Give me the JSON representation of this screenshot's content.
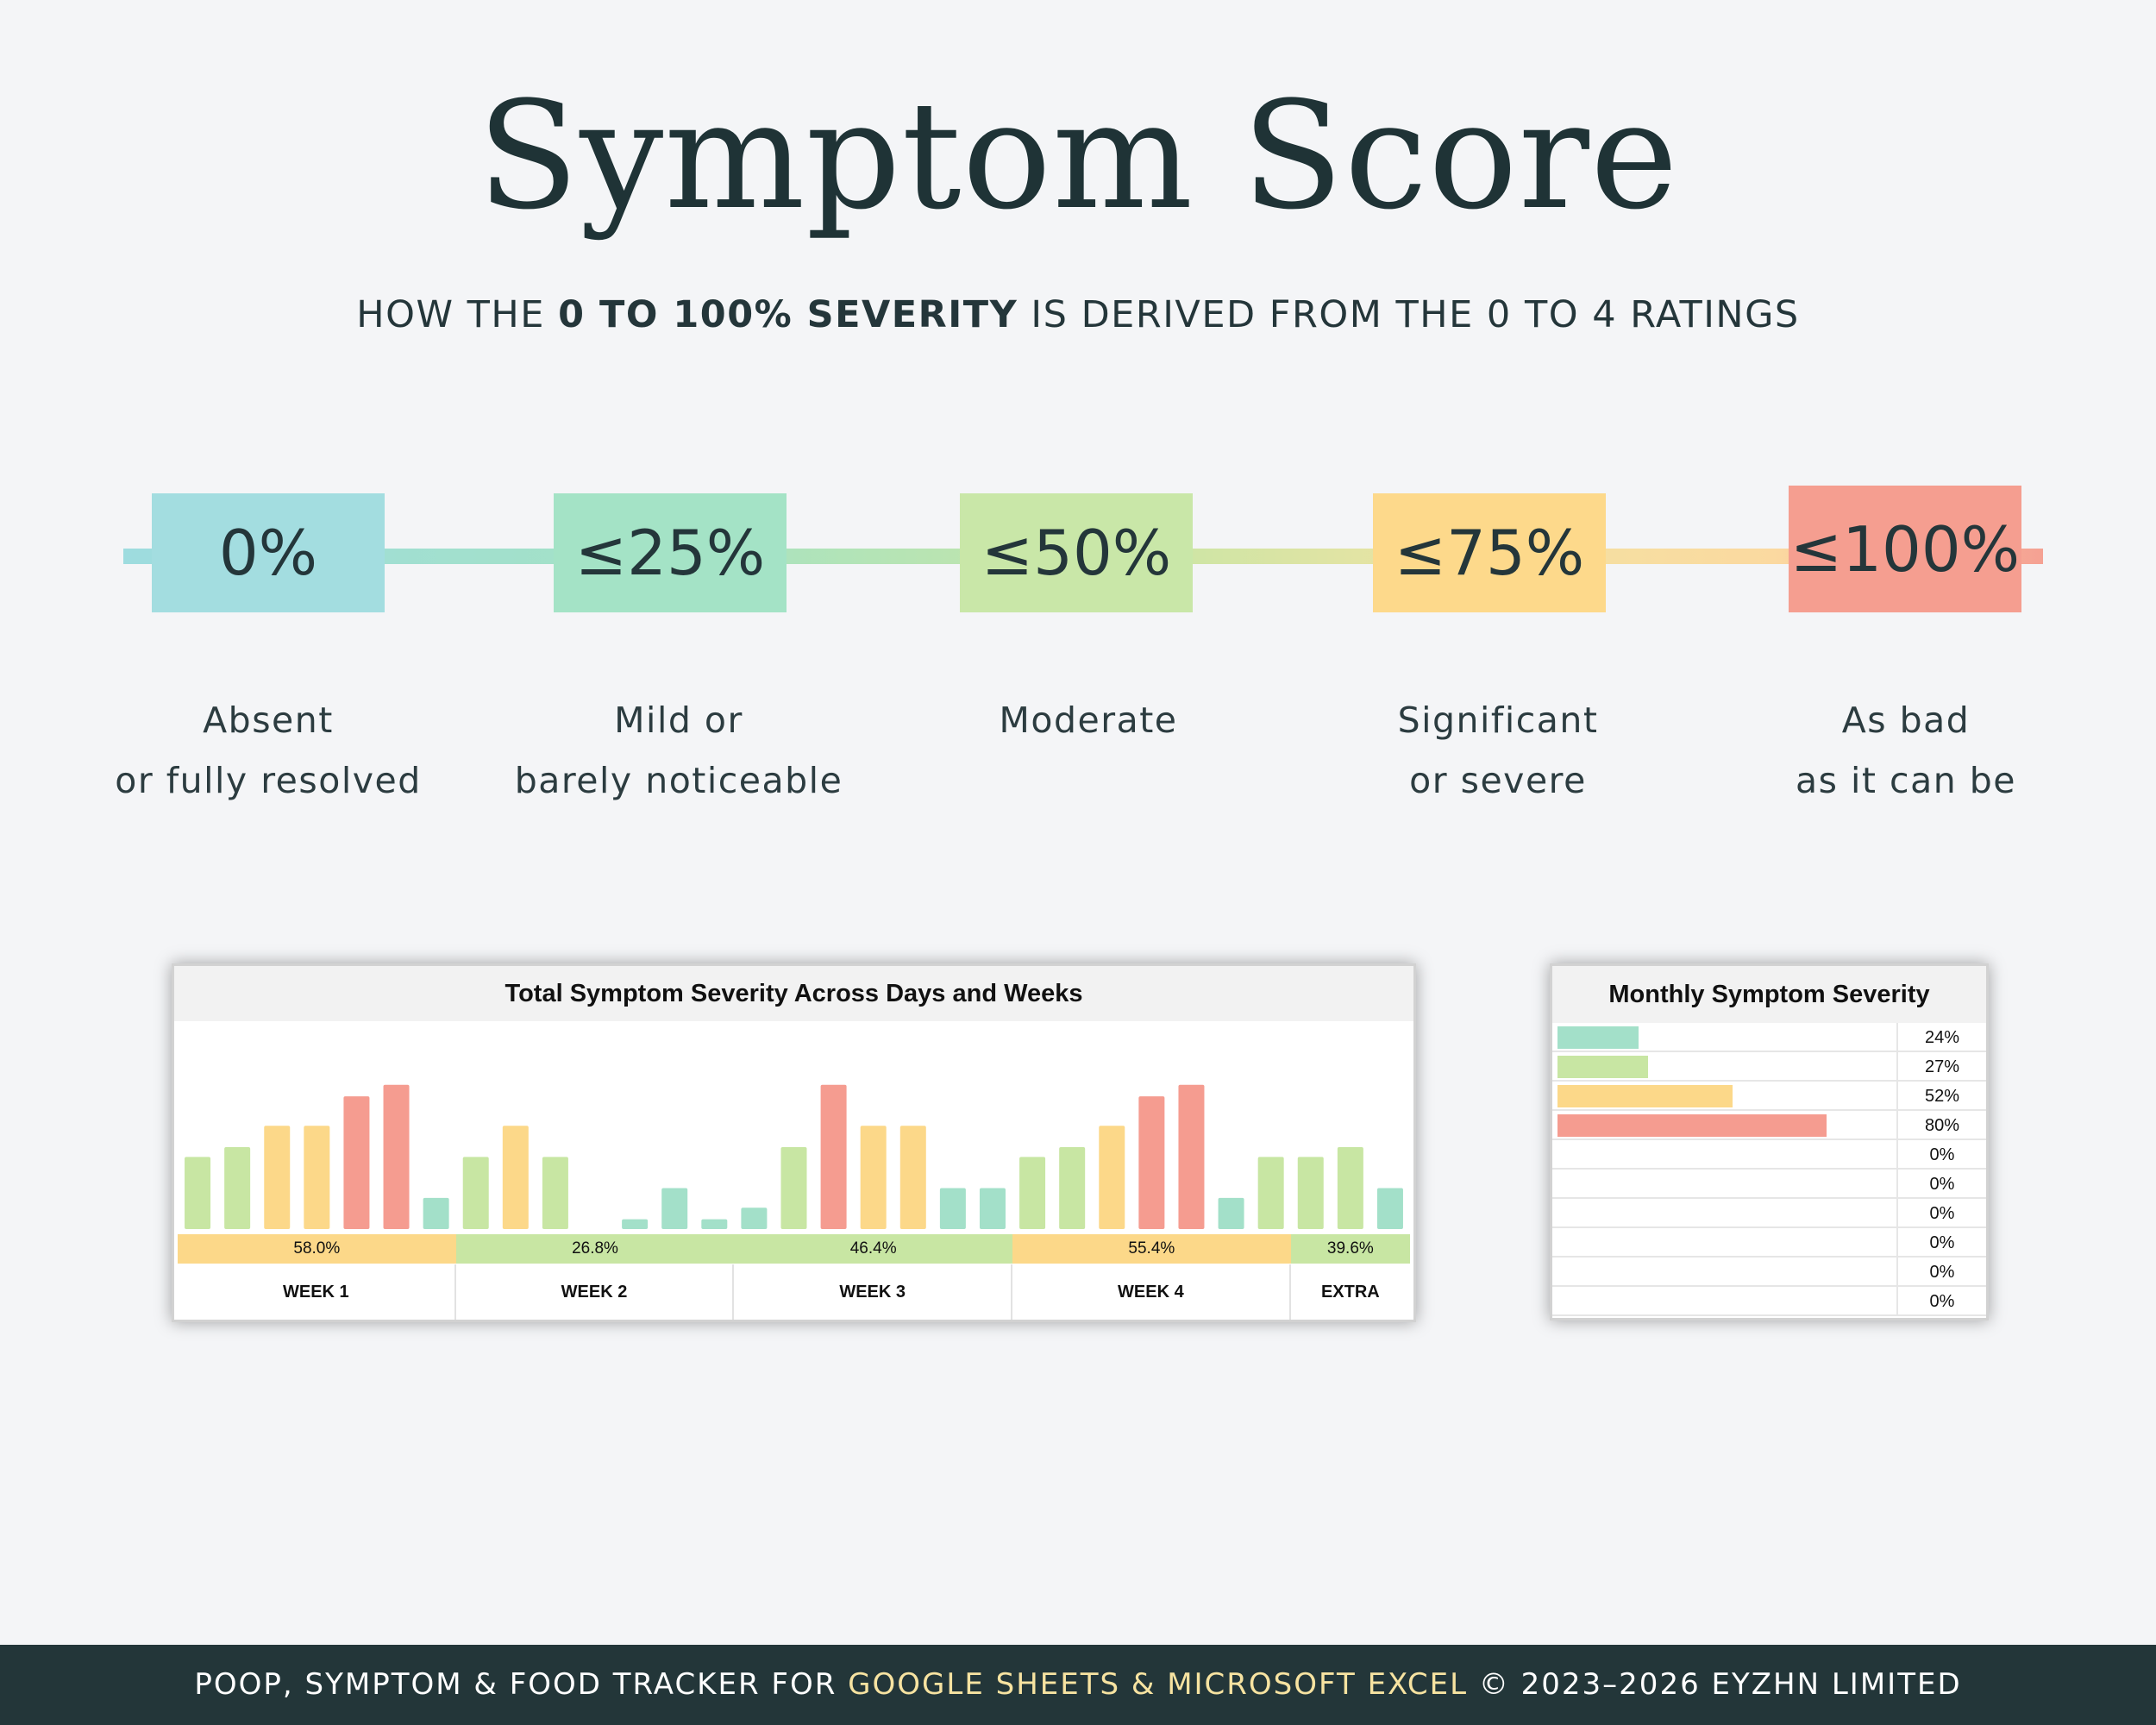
{
  "header": {
    "title": "Symptom Score",
    "subtitle_pre": "HOW THE ",
    "subtitle_bold": "0 TO 100% SEVERITY",
    "subtitle_post": " IS DERIVED FROM THE 0 TO 4 RATINGS"
  },
  "levels": [
    {
      "value": "0%",
      "line1": "Absent",
      "line2": "or fully resolved",
      "color": "#a3dde0"
    },
    {
      "value": "≤25%",
      "line1": "Mild or",
      "line2": "barely noticeable",
      "color": "#a4e3c6"
    },
    {
      "value": "≤50%",
      "line1": "Moderate",
      "line2": "",
      "color": "#c9e7a8"
    },
    {
      "value": "≤75%",
      "line1": "Significant",
      "line2": "or severe",
      "color": "#fdd98b"
    },
    {
      "value": "≤100%",
      "line1": "As bad",
      "line2": "as it can be",
      "color": "#f59e90"
    }
  ],
  "colors": {
    "teal": "#a3e0c9",
    "green": "#c8e6a3",
    "yellow": "#fcd889",
    "red": "#f59c90"
  },
  "chart_data": [
    {
      "type": "bar",
      "title": "Total Symptom Severity Across Days and Weeks",
      "ylim": [
        0,
        100
      ],
      "categories": [
        "44%",
        "50%",
        "63%",
        "63%",
        "81%",
        "88%",
        "19%",
        "44%",
        "63%",
        "44%",
        "0%",
        "6%",
        "25%",
        "6%",
        "13%",
        "50%",
        "88%",
        "63%",
        "63%",
        "25%",
        "25%",
        "44%",
        "50%",
        "63%",
        "81%",
        "88%",
        "19%",
        "44%",
        "44%",
        "50%",
        "25%"
      ],
      "values": [
        44,
        50,
        63,
        63,
        81,
        88,
        19,
        44,
        63,
        44,
        0,
        6,
        25,
        6,
        13,
        50,
        88,
        63,
        63,
        25,
        25,
        44,
        50,
        63,
        81,
        88,
        19,
        44,
        44,
        50,
        25
      ],
      "groups": [
        {
          "label": "WEEK 1",
          "average": "58.0%",
          "count": 7
        },
        {
          "label": "WEEK 2",
          "average": "26.8%",
          "count": 7
        },
        {
          "label": "WEEK 3",
          "average": "46.4%",
          "count": 7
        },
        {
          "label": "WEEK 4",
          "average": "55.4%",
          "count": 7
        },
        {
          "label": "EXTRA",
          "average": "39.6%",
          "count": 3
        }
      ]
    },
    {
      "type": "bar",
      "title": "Monthly Symptom Severity",
      "orientation": "horizontal",
      "xlim": [
        0,
        100
      ],
      "categories": [
        "24%",
        "27%",
        "52%",
        "80%",
        "0%",
        "0%",
        "0%",
        "0%",
        "0%",
        "0%"
      ],
      "values": [
        24,
        27,
        52,
        80,
        0,
        0,
        0,
        0,
        0,
        0
      ]
    }
  ],
  "footer": {
    "pre": "POOP, SYMPTOM & FOOD TRACKER FOR ",
    "highlight": "GOOGLE SHEETS & MICROSOFT EXCEL",
    "post": " © 2023–2026 EYZHN LIMITED"
  }
}
